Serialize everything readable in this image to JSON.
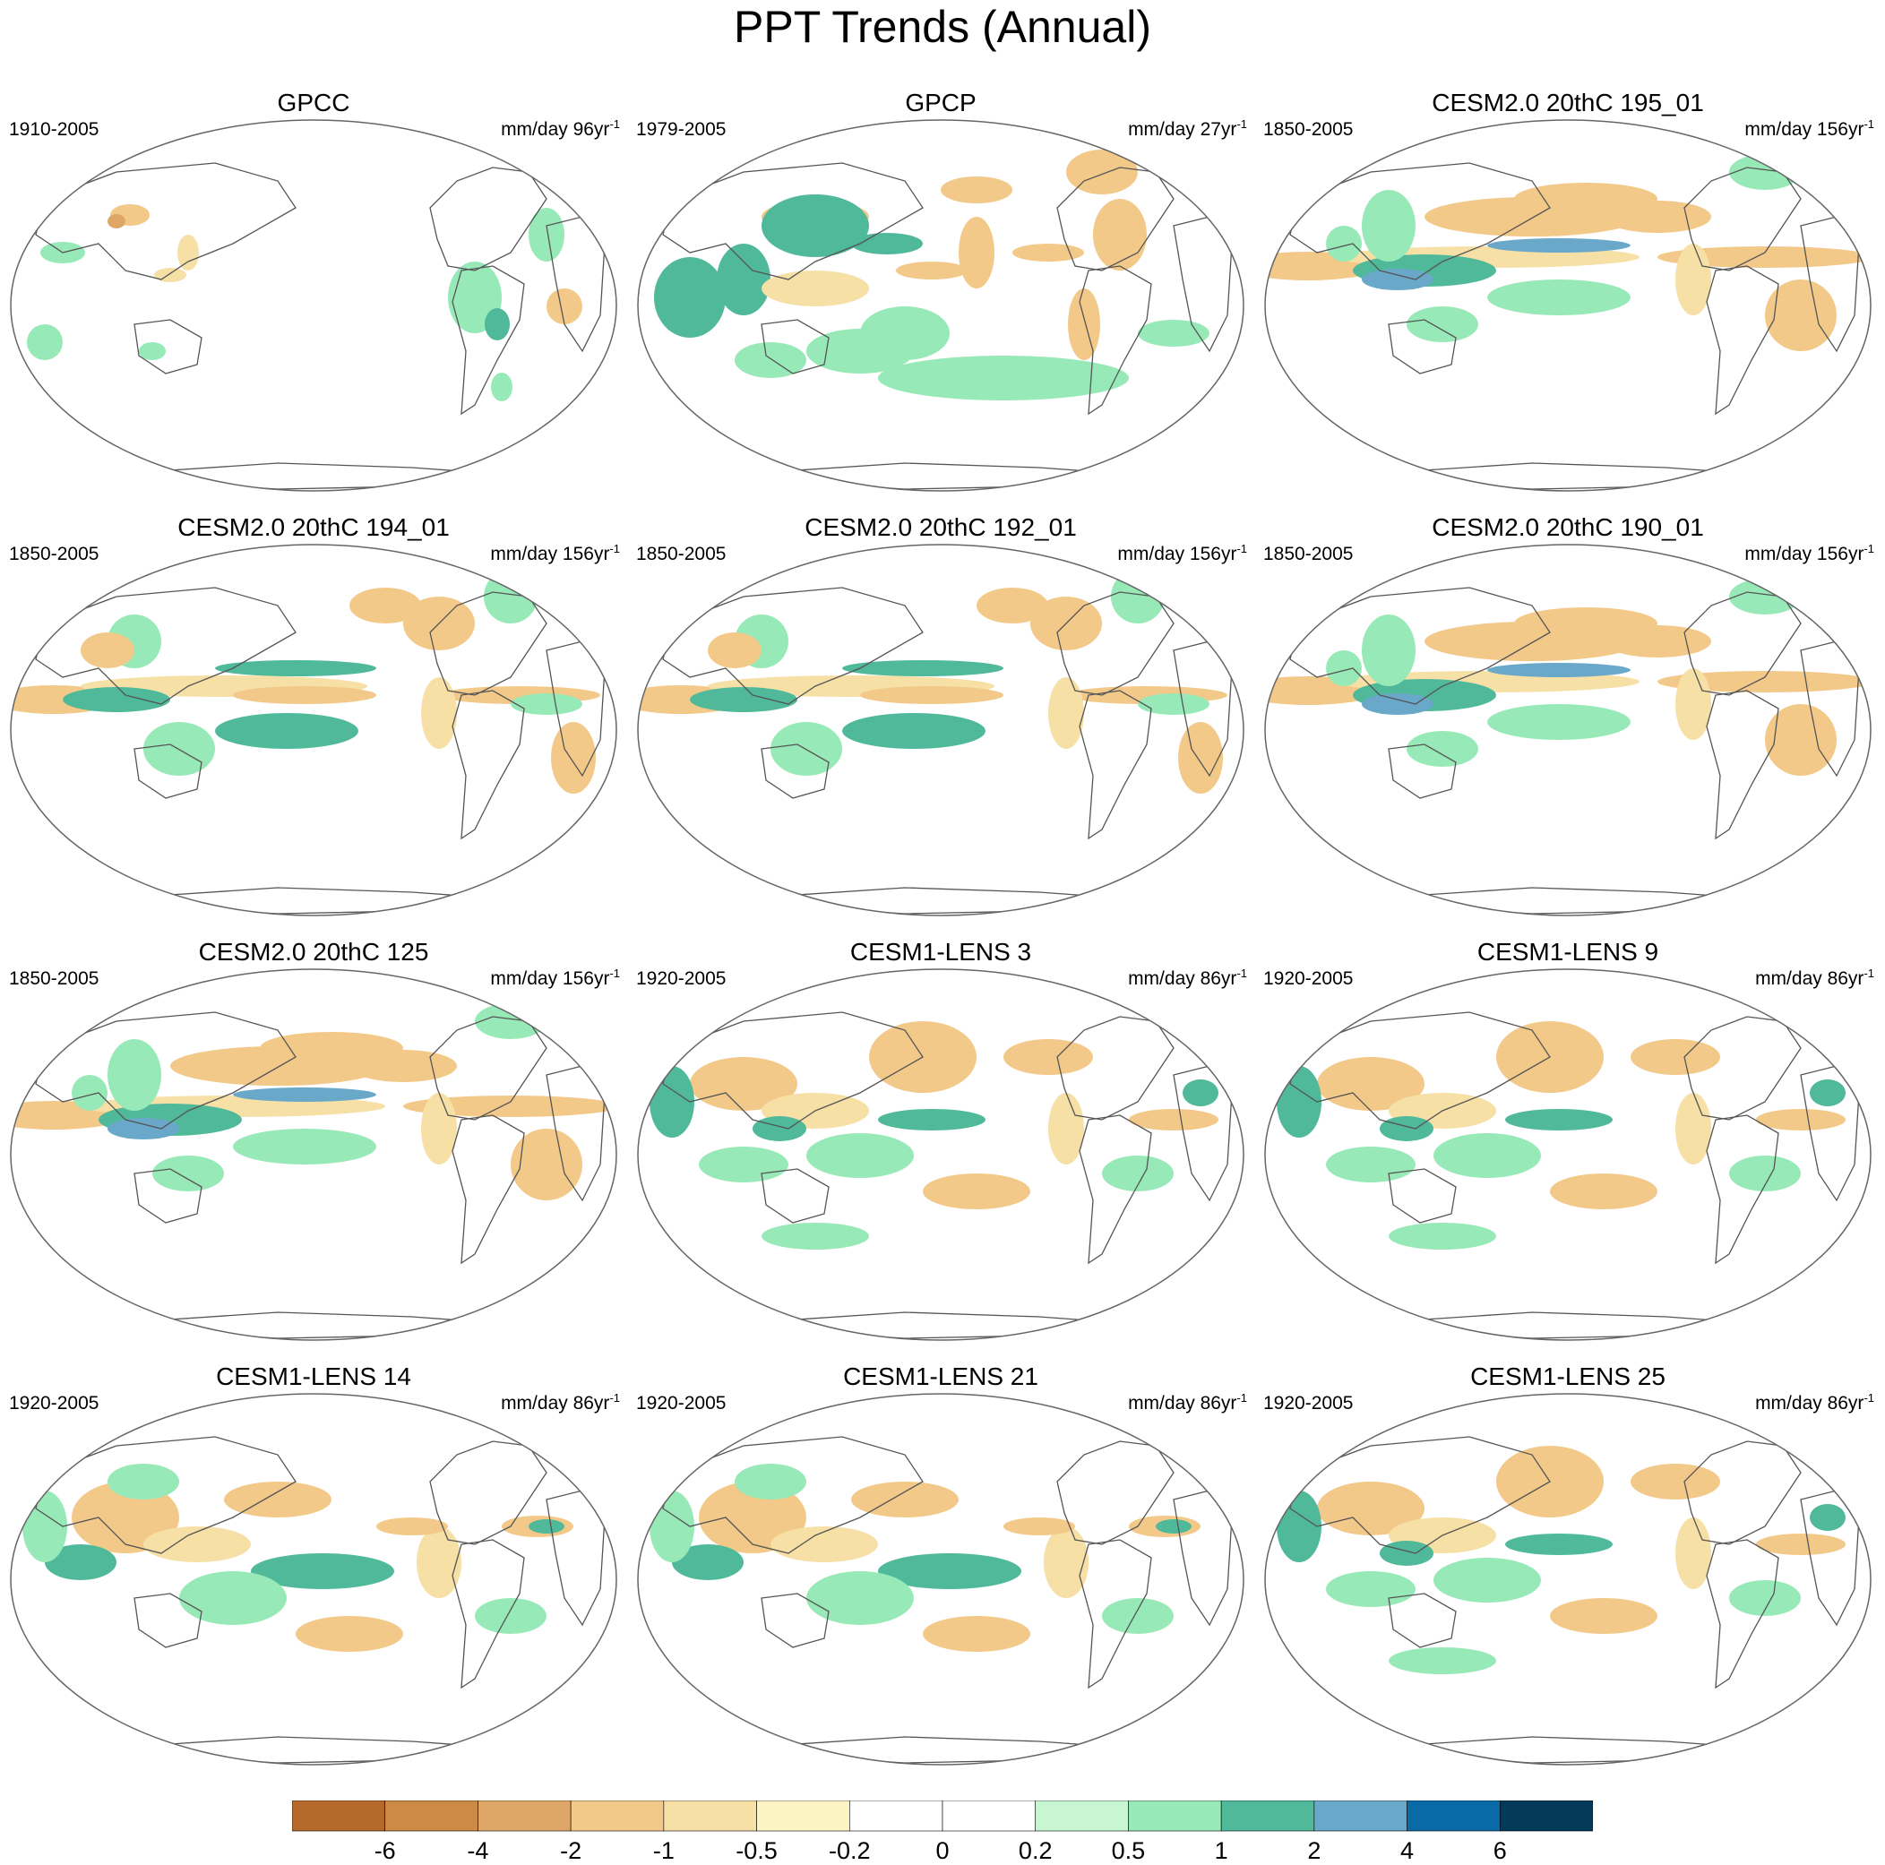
{
  "title": "PPT Trends (Annual)",
  "units_prefix": "mm/day",
  "units_suffix": "yr",
  "units_exponent": "-1",
  "panels": [
    {
      "title": "GPCC",
      "period": "1910-2005",
      "trend_years": "96",
      "pattern": "obs_gpcc"
    },
    {
      "title": "GPCP",
      "period": "1979-2005",
      "trend_years": "27",
      "pattern": "obs_gpcp"
    },
    {
      "title": "CESM2.0 20thC 195_01",
      "period": "1850-2005",
      "trend_years": "156",
      "pattern": "model_a"
    },
    {
      "title": "CESM2.0 20thC 194_01",
      "period": "1850-2005",
      "trend_years": "156",
      "pattern": "model_b"
    },
    {
      "title": "CESM2.0 20thC 192_01",
      "period": "1850-2005",
      "trend_years": "156",
      "pattern": "model_b"
    },
    {
      "title": "CESM2.0 20thC 190_01",
      "period": "1850-2005",
      "trend_years": "156",
      "pattern": "model_a"
    },
    {
      "title": "CESM2.0 20thC 125",
      "period": "1850-2005",
      "trend_years": "156",
      "pattern": "model_a"
    },
    {
      "title": "CESM1-LENS 3",
      "period": "1920-2005",
      "trend_years": "86",
      "pattern": "model_c"
    },
    {
      "title": "CESM1-LENS 9",
      "period": "1920-2005",
      "trend_years": "86",
      "pattern": "model_c"
    },
    {
      "title": "CESM1-LENS 14",
      "period": "1920-2005",
      "trend_years": "86",
      "pattern": "model_d"
    },
    {
      "title": "CESM1-LENS 21",
      "period": "1920-2005",
      "trend_years": "86",
      "pattern": "model_d"
    },
    {
      "title": "CESM1-LENS 25",
      "period": "1920-2005",
      "trend_years": "86",
      "pattern": "model_c"
    }
  ],
  "colorbar": {
    "colors": [
      "#b5692b",
      "#cd8a44",
      "#dfa767",
      "#f2c989",
      "#f6e0a6",
      "#fdf4c4",
      "#ffffff",
      "#ffffff",
      "#c8f5d2",
      "#98e9b8",
      "#4fb99a",
      "#6aa8c9",
      "#0a6aa8",
      "#033a5a"
    ],
    "labels": [
      "-6",
      "-4",
      "-2",
      "-1",
      "-0.5",
      "-0.2",
      "0",
      "0.2",
      "0.5",
      "1",
      "2",
      "4",
      "6"
    ]
  }
}
